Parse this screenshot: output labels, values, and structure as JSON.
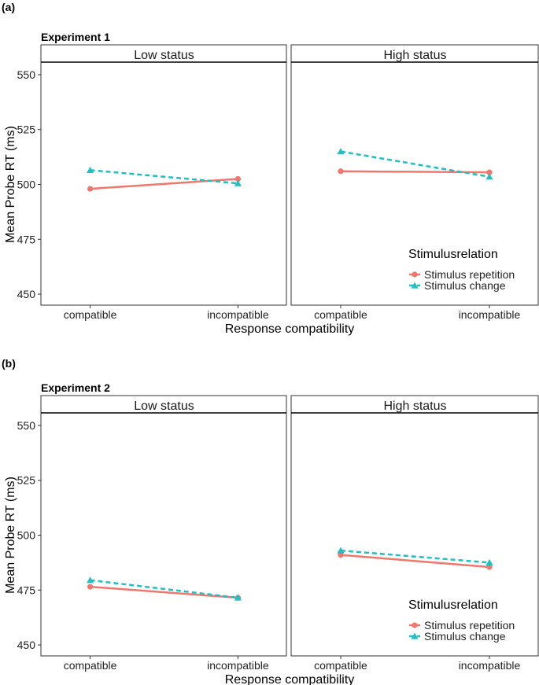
{
  "colors": {
    "repetition": "#F0776C",
    "change": "#1FBFC3"
  },
  "chart_data": [
    {
      "type": "line",
      "panel_label": "(a)",
      "title": "Experiment 1",
      "xlabel": "Response compatibility",
      "ylabel": "Mean Probe RT (ms)",
      "ylim": [
        445,
        555
      ],
      "yticks": [
        450,
        475,
        500,
        525,
        550
      ],
      "categories": [
        "compatible",
        "incompatible"
      ],
      "legend_title": "Stimulusrelation",
      "legend_location": "bottom-right",
      "facets": [
        {
          "label": "Low status",
          "series": [
            {
              "name": "Stimulus repetition",
              "values": [
                498,
                502.5
              ]
            },
            {
              "name": "Stimulus change",
              "values": [
                506.5,
                500.5
              ]
            }
          ]
        },
        {
          "label": "High status",
          "series": [
            {
              "name": "Stimulus repetition",
              "values": [
                506,
                505.5
              ]
            },
            {
              "name": "Stimulus change",
              "values": [
                515,
                503.5
              ]
            }
          ]
        }
      ]
    },
    {
      "type": "line",
      "panel_label": "(b)",
      "title": "Experiment 2",
      "xlabel": "Response compatibility",
      "ylabel": "Mean Probe RT (ms)",
      "ylim": [
        445,
        555
      ],
      "yticks": [
        450,
        475,
        500,
        525,
        550
      ],
      "categories": [
        "compatible",
        "incompatible"
      ],
      "legend_title": "Stimulusrelation",
      "legend_location": "bottom-right",
      "facets": [
        {
          "label": "Low status",
          "series": [
            {
              "name": "Stimulus repetition",
              "values": [
                476.5,
                471.5
              ]
            },
            {
              "name": "Stimulus change",
              "values": [
                479.5,
                471.5
              ]
            }
          ]
        },
        {
          "label": "High status",
          "series": [
            {
              "name": "Stimulus repetition",
              "values": [
                491,
                485.5
              ]
            },
            {
              "name": "Stimulus change",
              "values": [
                493,
                487.5
              ]
            }
          ]
        }
      ]
    }
  ]
}
